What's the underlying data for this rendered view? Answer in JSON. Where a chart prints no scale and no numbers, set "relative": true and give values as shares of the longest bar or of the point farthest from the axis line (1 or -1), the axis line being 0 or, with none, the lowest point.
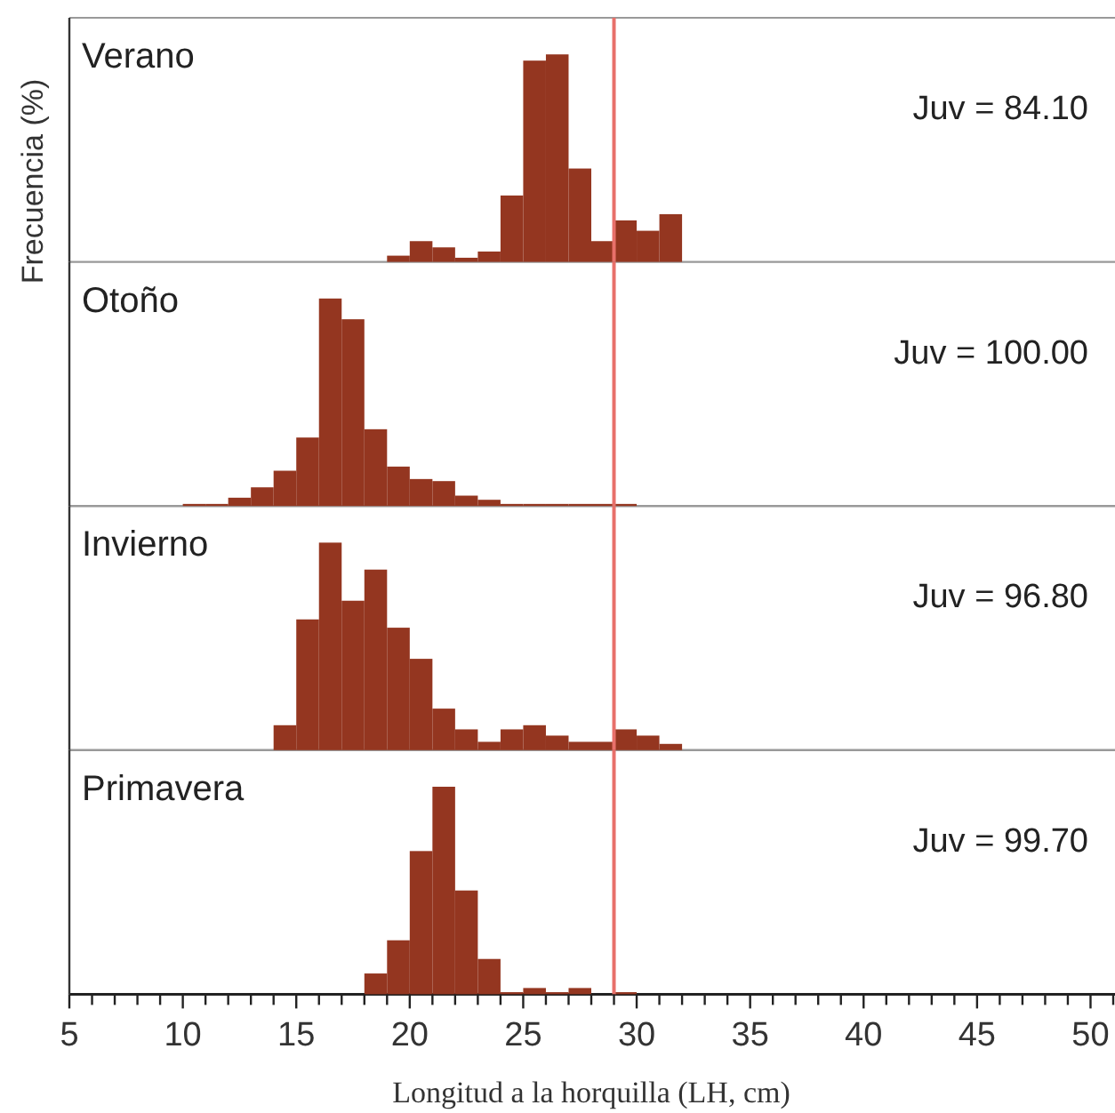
{
  "chart_data": [
    {
      "type": "bar",
      "title": "Verano",
      "ylabel": "Frecuencia (%)",
      "relative": true,
      "xlim": [
        5,
        51
      ],
      "tick_labels": false,
      "color": "#943620",
      "x": [
        19.5,
        20.5,
        21.5,
        22.5,
        23.5,
        24.5,
        25.5,
        26.5,
        27.5,
        28.5,
        29.5,
        30.5,
        31.5
      ],
      "values": [
        0.03,
        0.1,
        0.07,
        0.02,
        0.05,
        0.32,
        0.97,
        1,
        0.45,
        0.1,
        0.2,
        0.15,
        0.23
      ],
      "ref_lines": [
        {
          "axis": "x",
          "value": 29,
          "color": "#e8706a"
        }
      ],
      "annotations": [
        "Juv = 84.10"
      ]
    },
    {
      "type": "bar",
      "title": "Otoño",
      "relative": true,
      "xlim": [
        5,
        51
      ],
      "tick_labels": false,
      "color": "#943620",
      "x": [
        10.5,
        11.5,
        12.5,
        13.5,
        14.5,
        15.5,
        16.5,
        17.5,
        18.5,
        19.5,
        20.5,
        21.5,
        22.5,
        23.5,
        24.5,
        25.5,
        26.5,
        27.5,
        28.5,
        29.5
      ],
      "values": [
        0.01,
        0.01,
        0.04,
        0.09,
        0.17,
        0.33,
        1,
        0.9,
        0.37,
        0.19,
        0.13,
        0.12,
        0.05,
        0.03,
        0.01,
        0.01,
        0.01,
        0.01,
        0.01,
        0.01
      ],
      "ref_lines": [
        {
          "axis": "x",
          "value": 29,
          "color": "#e8706a"
        }
      ],
      "annotations": [
        "Juv = 100.00"
      ]
    },
    {
      "type": "bar",
      "title": "Invierno",
      "relative": true,
      "xlim": [
        5,
        51
      ],
      "tick_labels": false,
      "color": "#943620",
      "x": [
        14.5,
        15.5,
        16.5,
        17.5,
        18.5,
        19.5,
        20.5,
        21.5,
        22.5,
        23.5,
        24.5,
        25.5,
        26.5,
        27.5,
        28.5,
        29.5,
        30.5,
        31.5
      ],
      "values": [
        0.12,
        0.63,
        1,
        0.72,
        0.87,
        0.59,
        0.44,
        0.2,
        0.1,
        0.04,
        0.1,
        0.12,
        0.07,
        0.04,
        0.04,
        0.1,
        0.07,
        0.03
      ],
      "ref_lines": [
        {
          "axis": "x",
          "value": 29,
          "color": "#e8706a"
        }
      ],
      "annotations": [
        "Juv = 96.80"
      ]
    },
    {
      "type": "bar",
      "title": "Primavera",
      "xlabel": "Longitud a la horquilla (LH, cm)",
      "relative": true,
      "xlim": [
        5,
        51
      ],
      "tick_labels": "x",
      "color": "#943620",
      "x": [
        18.5,
        19.5,
        20.5,
        21.5,
        22.5,
        23.5,
        24.5,
        25.5,
        26.5,
        27.5,
        28.5,
        29.5
      ],
      "values": [
        0.1,
        0.26,
        0.69,
        1,
        0.5,
        0.17,
        0.01,
        0.03,
        0.01,
        0.03,
        0,
        0.01
      ],
      "xticks": [
        {
          "value": 5,
          "label": "5"
        },
        {
          "value": 6,
          "label": null
        },
        {
          "value": 7,
          "label": null
        },
        {
          "value": 8,
          "label": null
        },
        {
          "value": 9,
          "label": null
        },
        {
          "value": 10,
          "label": "10"
        },
        {
          "value": 11,
          "label": null
        },
        {
          "value": 12,
          "label": null
        },
        {
          "value": 13,
          "label": null
        },
        {
          "value": 14,
          "label": null
        },
        {
          "value": 15,
          "label": "15"
        },
        {
          "value": 16,
          "label": null
        },
        {
          "value": 17,
          "label": null
        },
        {
          "value": 18,
          "label": null
        },
        {
          "value": 19,
          "label": null
        },
        {
          "value": 20,
          "label": "20"
        },
        {
          "value": 21,
          "label": null
        },
        {
          "value": 22,
          "label": null
        },
        {
          "value": 23,
          "label": null
        },
        {
          "value": 24,
          "label": null
        },
        {
          "value": 25,
          "label": "25"
        },
        {
          "value": 26,
          "label": null
        },
        {
          "value": 27,
          "label": null
        },
        {
          "value": 28,
          "label": null
        },
        {
          "value": 29,
          "label": null
        },
        {
          "value": 30,
          "label": "30"
        },
        {
          "value": 31,
          "label": null
        },
        {
          "value": 32,
          "label": null
        },
        {
          "value": 33,
          "label": null
        },
        {
          "value": 34,
          "label": null
        },
        {
          "value": 35,
          "label": "35"
        },
        {
          "value": 36,
          "label": null
        },
        {
          "value": 37,
          "label": null
        },
        {
          "value": 38,
          "label": null
        },
        {
          "value": 39,
          "label": null
        },
        {
          "value": 40,
          "label": "40"
        },
        {
          "value": 41,
          "label": null
        },
        {
          "value": 42,
          "label": null
        },
        {
          "value": 43,
          "label": null
        },
        {
          "value": 44,
          "label": null
        },
        {
          "value": 45,
          "label": "45"
        },
        {
          "value": 46,
          "label": null
        },
        {
          "value": 47,
          "label": null
        },
        {
          "value": 48,
          "label": null
        },
        {
          "value": 49,
          "label": null
        },
        {
          "value": 50,
          "label": "50"
        },
        {
          "value": 51,
          "label": null
        }
      ],
      "ref_lines": [
        {
          "axis": "x",
          "value": 29,
          "color": "#e8706a"
        }
      ],
      "annotations": [
        "Juv = 99.70"
      ]
    }
  ]
}
